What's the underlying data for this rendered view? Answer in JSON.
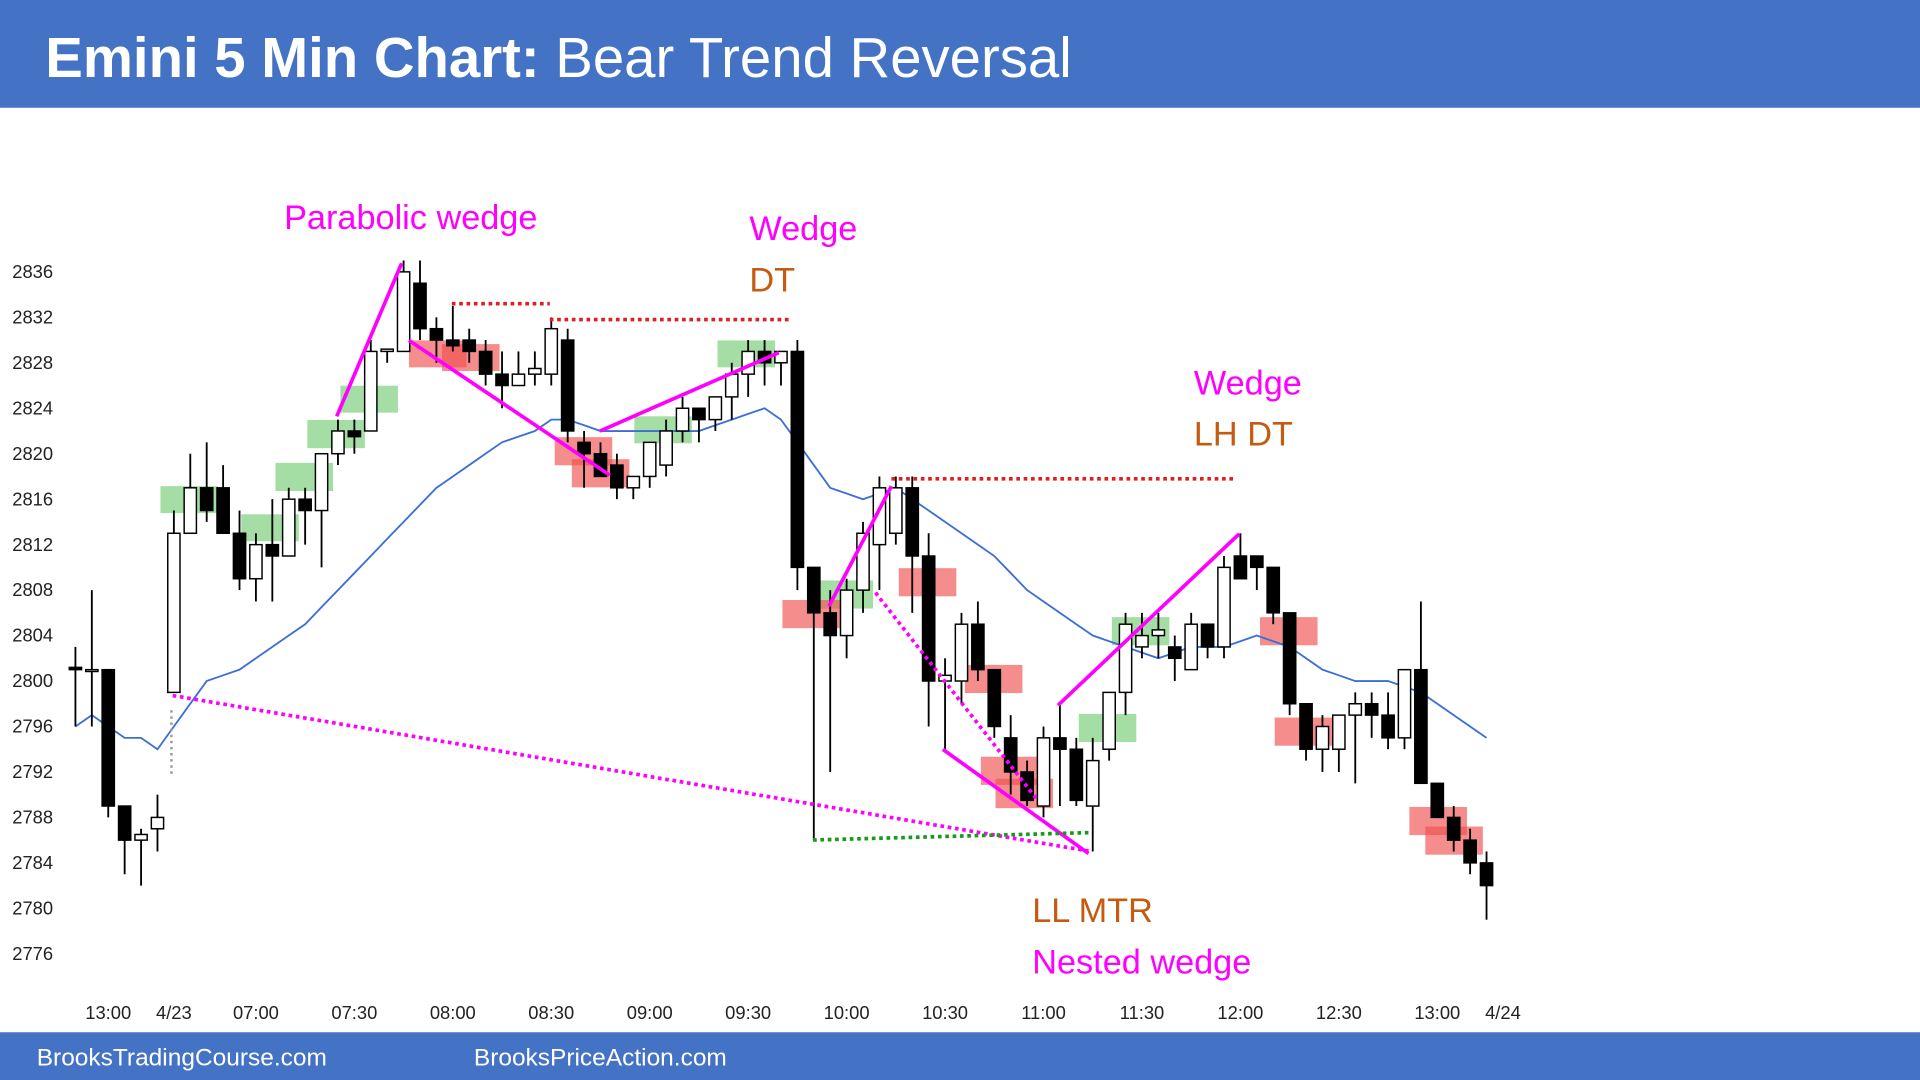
{
  "header": {
    "title": "Emini 5 Min Chart:",
    "subtitle": "Bear Trend Reversal"
  },
  "footer": [
    "BrooksTradingCourse.com",
    "BrooksPriceAction.com"
  ],
  "chart_data": {
    "type": "candlestick",
    "categories": [
      null,
      null,
      "13:00",
      null,
      null,
      null,
      "4/23",
      null,
      null,
      null,
      null,
      "07:00",
      null,
      null,
      null,
      null,
      null,
      "07:30",
      null,
      null,
      null,
      null,
      null,
      "08:00",
      null,
      null,
      null,
      null,
      null,
      "08:30",
      null,
      null,
      null,
      null,
      null,
      "09:00",
      null,
      null,
      null,
      null,
      null,
      "09:30",
      null,
      null,
      null,
      null,
      null,
      "10:00",
      null,
      null,
      null,
      null,
      null,
      "10:30",
      null,
      null,
      null,
      null,
      null,
      "11:00",
      null,
      null,
      null,
      null,
      null,
      "11:30",
      null,
      null,
      null,
      null,
      null,
      "12:00",
      null,
      null,
      null,
      null,
      null,
      "12:30",
      null,
      null,
      null,
      null,
      null,
      "13:00",
      null,
      null,
      null,
      "4/24"
    ],
    "open": [
      2801.2,
      2801,
      2801,
      2789,
      2786,
      2787,
      2799,
      2813,
      2817,
      2817,
      2813,
      2809,
      2812,
      2811,
      2816,
      2815,
      2820,
      2822,
      2822,
      2829,
      2829,
      2835,
      2831,
      2830,
      2830,
      2829,
      2827,
      2826,
      2827,
      2827,
      2830,
      2821,
      2820,
      2819,
      2817,
      2818,
      2819,
      2822,
      2824,
      2823,
      2825,
      2827,
      2829,
      2828,
      2829,
      2810,
      2806,
      2804,
      2808,
      2812,
      2813,
      2817,
      2811,
      2800,
      2800,
      2805,
      2801,
      2795,
      2792,
      2789,
      2795,
      2794,
      2789,
      2794,
      2799,
      2803,
      2804,
      2803,
      2801,
      2805,
      2803,
      2811,
      2811,
      2810,
      2806,
      2798,
      2794,
      2794,
      2797,
      2798,
      2797,
      2795,
      2801,
      2791,
      2788,
      2786,
      2784,
      null
    ],
    "high": [
      2803,
      2808,
      2801,
      2789,
      2787,
      2790,
      2815,
      2820,
      2821,
      2819,
      2815,
      2813,
      2816,
      2817,
      2817,
      2820,
      2823,
      2823,
      2830,
      2829,
      2837,
      2837,
      2832,
      2833,
      2831,
      2830,
      2829,
      2829,
      2829,
      2832,
      2831,
      2822,
      2821,
      2820,
      2818,
      2821,
      2823,
      2825,
      2824,
      2825,
      2828,
      2830,
      2830,
      2829,
      2830,
      2810,
      2808,
      2809,
      2814,
      2818,
      2818,
      2818,
      2813,
      2802,
      2806,
      2807,
      2801,
      2797,
      2793,
      2796,
      2798,
      2795,
      2795,
      2799,
      2806,
      2806,
      2806,
      2804,
      2806,
      2805,
      2811,
      2813,
      2811,
      2810,
      2806,
      2798,
      2797,
      2797,
      2799,
      2799,
      2799,
      2801,
      2807,
      2791,
      2789,
      2787,
      2785,
      null
    ],
    "low": [
      2796,
      2796,
      2788,
      2783,
      2782,
      2785,
      2799,
      2813,
      2814,
      2813,
      2808,
      2807,
      2807,
      2811,
      2812,
      2810,
      2819,
      2820,
      2822,
      2828,
      2829,
      2830,
      2828,
      2829,
      2828,
      2826,
      2824,
      2826,
      2826,
      2826,
      2821,
      2817,
      2818,
      2816,
      2816,
      2817,
      2818,
      2821,
      2821,
      2822,
      2823,
      2825,
      2826,
      2826,
      2808,
      2786,
      2792,
      2802,
      2806,
      2808,
      2812,
      2806,
      2796,
      2794,
      2798,
      2800,
      2795,
      2790,
      2789,
      2788,
      2789,
      2789,
      2785,
      2793,
      2797,
      2802,
      2802,
      2800,
      2801,
      2802,
      2802,
      2809,
      2808,
      2805,
      2797,
      2793,
      2792,
      2792,
      2791,
      2795,
      2794,
      2794,
      2791,
      2788,
      2785,
      2783,
      2779,
      null
    ],
    "close": [
      2801,
      2801,
      2789,
      2786,
      2786.5,
      2788,
      2813,
      2817,
      2815,
      2813,
      2809,
      2812,
      2811,
      2816,
      2815,
      2820,
      2822,
      2821.5,
      2829,
      2829.2,
      2836,
      2831,
      2830,
      2829.5,
      2829,
      2827,
      2826,
      2827,
      2827.5,
      2831,
      2822,
      2820,
      2818,
      2817,
      2818,
      2821,
      2822,
      2824,
      2823,
      2825,
      2827,
      2829,
      2828,
      2829,
      2810,
      2806,
      2804,
      2808,
      2813,
      2817,
      2817,
      2811,
      2800,
      2800.5,
      2805,
      2801,
      2796,
      2792,
      2789.5,
      2795,
      2794,
      2789.5,
      2793,
      2799,
      2805,
      2804,
      2804.5,
      2802,
      2805,
      2803,
      2810,
      2809,
      2810,
      2806,
      2798,
      2794,
      2796,
      2797,
      2798,
      2797,
      2795,
      2801,
      2791,
      2788,
      2786,
      2784,
      2782,
      null
    ],
    "ema": {
      "color": "#3c6fd6",
      "values": [
        2796,
        2797,
        2796,
        2795,
        2795,
        2794,
        2796,
        2798,
        2800,
        2800.5,
        2801,
        2802,
        2803,
        2804,
        2805,
        2806.5,
        2808,
        2809.5,
        2811,
        2812.5,
        2814,
        2815.5,
        2817,
        2818,
        2819,
        2820,
        2821,
        2821.5,
        2822,
        2823,
        2823,
        2822.5,
        2822,
        2822,
        2822,
        2822,
        2822,
        2822,
        2822,
        2822.5,
        2823,
        2823.5,
        2824,
        2823,
        2821,
        2819,
        2817,
        2816.5,
        2816,
        2816.5,
        2817,
        2816,
        2815,
        2814,
        2813,
        2812,
        2811,
        2809.5,
        2808,
        2807,
        2806,
        2805,
        2804,
        2803.5,
        2803,
        2802.5,
        2802,
        2802.5,
        2803,
        2803,
        2803,
        2803.5,
        2804,
        2803.5,
        2803,
        2802,
        2801,
        2800.5,
        2800,
        2800,
        2800,
        2799.5,
        2799,
        2798,
        2797,
        2796,
        2795,
        null
      ]
    },
    "up_color": "#ffffff",
    "down_color": "#000000",
    "ylim": [
      2774,
      2846
    ],
    "yticks": [
      2776,
      2780,
      2784,
      2788,
      2792,
      2796,
      2800,
      2804,
      2808,
      2812,
      2816,
      2820,
      2824,
      2828,
      2832,
      2836
    ],
    "grid": false,
    "annotations": [
      {
        "text": "Parabolic wedge",
        "color": "#ff00ff"
      },
      {
        "text": "Wedge",
        "color": "#ff00ff"
      },
      {
        "text": "DT",
        "color": "#c55a11"
      },
      {
        "text": "Wedge",
        "color": "#ff00ff"
      },
      {
        "text": "LH DT",
        "color": "#c55a11"
      },
      {
        "text": "LL MTR",
        "color": "#c55a11"
      },
      {
        "text": "Nested wedge",
        "color": "#ff00ff"
      }
    ]
  }
}
